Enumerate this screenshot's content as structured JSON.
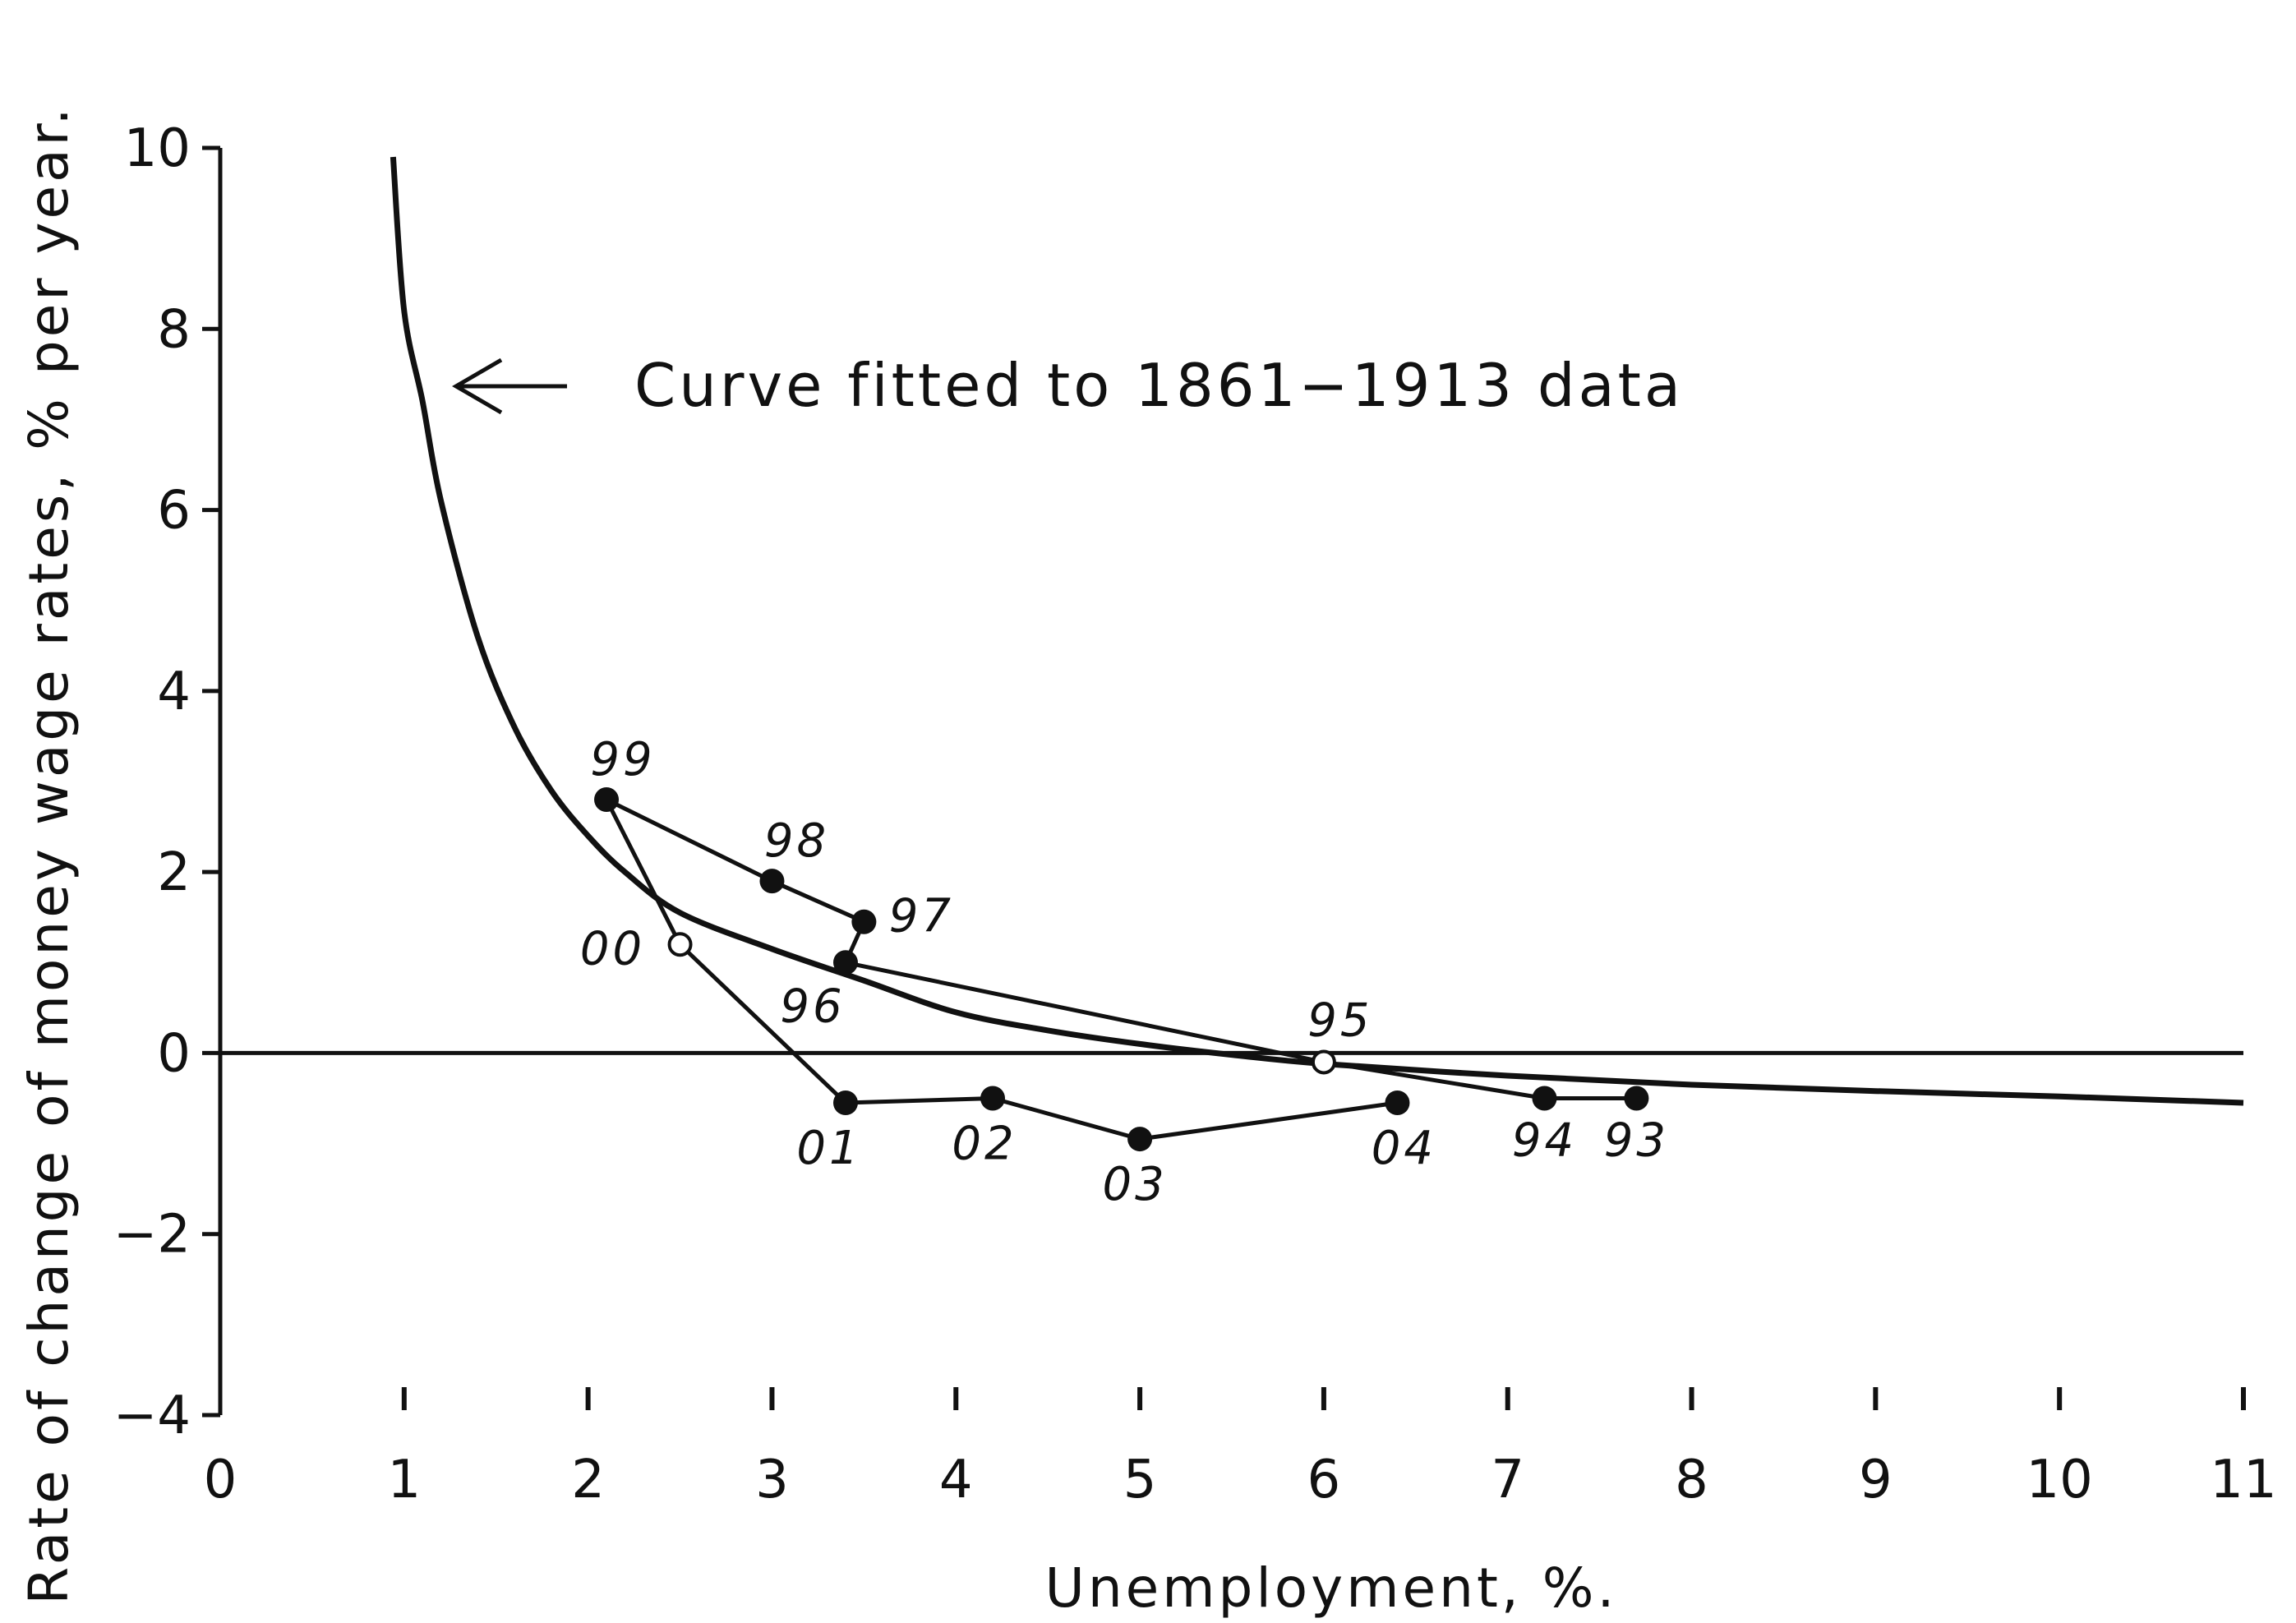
{
  "chart_data": {
    "type": "scatter",
    "xlabel": "Unemployment, %.",
    "ylabel": "Rate of change of money wage rates, % per year.",
    "xlim": [
      0,
      11
    ],
    "ylim": [
      -4,
      10
    ],
    "x_ticks": [
      "0",
      "1",
      "2",
      "3",
      "4",
      "5",
      "6",
      "7",
      "8",
      "9",
      "10",
      "11"
    ],
    "y_ticks": [
      "10",
      "8",
      "6",
      "4",
      "2",
      "0",
      "−2",
      "−4"
    ],
    "grid": false,
    "annotation": "Curve fitted to 1861−1913 data",
    "fitted_curve": {
      "x": [
        0.94,
        1.0,
        1.1,
        1.2,
        1.4,
        1.6,
        1.8,
        2.0,
        2.2,
        2.5,
        3.0,
        3.5,
        4.0,
        4.5,
        5.0,
        5.5,
        6.0,
        7.0,
        8.0,
        9.0,
        10.0,
        11.0
      ],
      "y": [
        9.9,
        8.2,
        7.2,
        6.1,
        4.6,
        3.6,
        2.9,
        2.4,
        2.0,
        1.55,
        1.15,
        0.8,
        0.45,
        0.25,
        0.1,
        -0.02,
        -0.12,
        -0.25,
        -0.35,
        -0.42,
        -0.48,
        -0.55
      ]
    },
    "series": [
      {
        "points": [
          {
            "year": "93",
            "x": 7.7,
            "y": -0.5
          },
          {
            "year": "94",
            "x": 7.2,
            "y": -0.5
          },
          {
            "year": "95",
            "x": 6.0,
            "y": -0.1
          },
          {
            "year": "96",
            "x": 3.4,
            "y": 1.0
          },
          {
            "year": "97",
            "x": 3.5,
            "y": 1.45
          },
          {
            "year": "98",
            "x": 3.0,
            "y": 1.9
          },
          {
            "year": "99",
            "x": 2.1,
            "y": 2.8
          },
          {
            "year": "00",
            "x": 2.5,
            "y": 1.2
          },
          {
            "year": "01",
            "x": 3.4,
            "y": -0.55
          },
          {
            "year": "02",
            "x": 4.2,
            "y": -0.5
          },
          {
            "year": "03",
            "x": 5.0,
            "y": -0.95
          },
          {
            "year": "04",
            "x": 6.4,
            "y": -0.55
          }
        ]
      }
    ]
  }
}
